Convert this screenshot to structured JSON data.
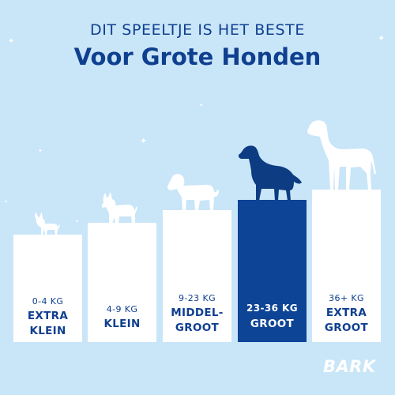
{
  "header": {
    "line1": "DIT SPEELTJE IS HET BESTE",
    "line2": "Voor Grote Honden"
  },
  "sizes": [
    {
      "weight": "0-4 KG",
      "size_line1": "EXTRA",
      "size_line2": "KLEIN",
      "highlighted": false,
      "dog_icon": "chihuahua-icon"
    },
    {
      "weight": "4-9 KG",
      "size_line1": "KLEIN",
      "size_line2": "",
      "highlighted": false,
      "dog_icon": "terrier-icon"
    },
    {
      "weight": "9-23 KG",
      "size_line1": "MIDDEL-",
      "size_line2": "GROOT",
      "highlighted": false,
      "dog_icon": "medium-dog-icon"
    },
    {
      "weight": "23-36 KG",
      "size_line1": "GROOT",
      "size_line2": "",
      "highlighted": true,
      "dog_icon": "retriever-icon"
    },
    {
      "weight": "36+ KG",
      "size_line1": "EXTRA",
      "size_line2": "GROOT",
      "highlighted": false,
      "dog_icon": "great-dane-icon"
    }
  ],
  "brand": {
    "logo_text": "BARK",
    "logo_icon": "bark-logo-icon"
  },
  "colors": {
    "background": "#c9e5f8",
    "accent": "#0f3f8f",
    "highlight_bar": "#0d4496",
    "bar": "#ffffff",
    "dog_silhouette": "#ffffff",
    "highlight_dog": "#0d3c82"
  }
}
